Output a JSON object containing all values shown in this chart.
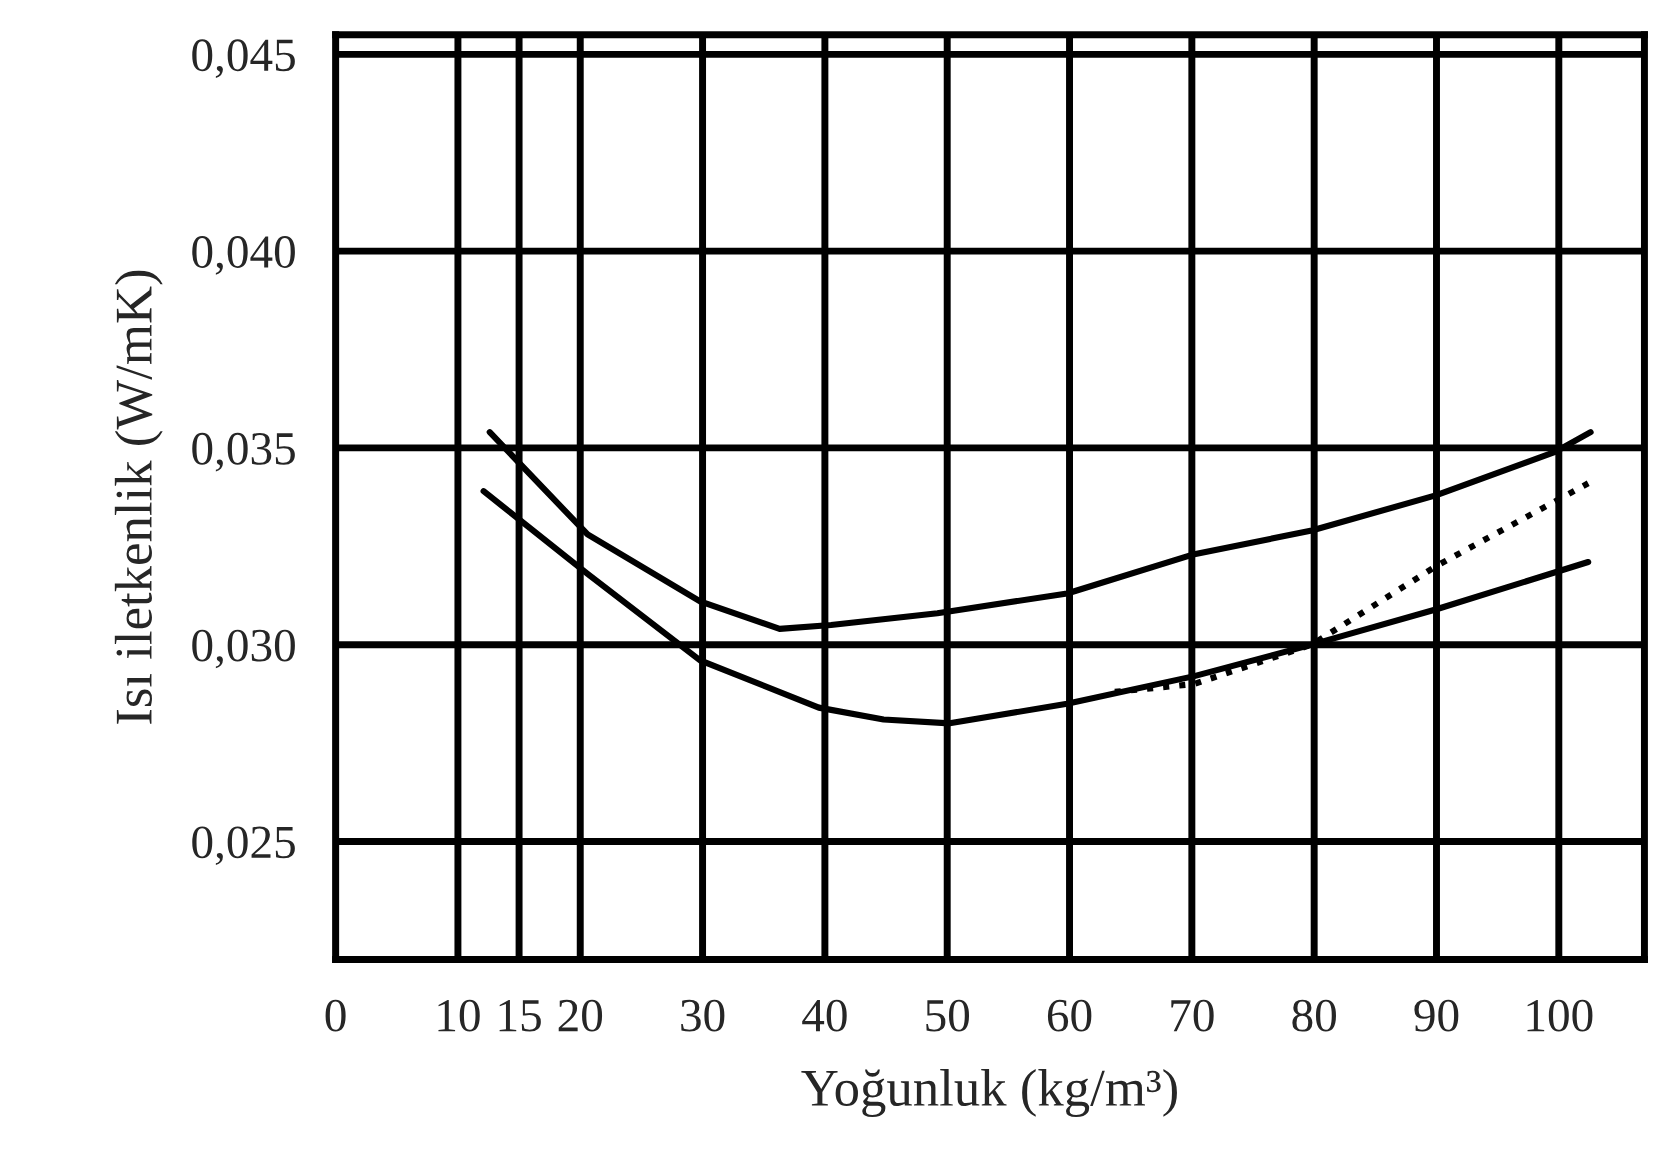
{
  "chart_data": {
    "type": "line",
    "xlabel": "Yoğunluk (kg/m³)",
    "ylabel": "Isı iletkenlik (W/mK)",
    "xlim": [
      0,
      107
    ],
    "xticks": [
      0,
      10,
      15,
      20,
      30,
      40,
      50,
      60,
      70,
      80,
      90,
      100
    ],
    "ylim": [
      0.022,
      0.0455
    ],
    "yticks": [
      {
        "value": 0.025,
        "label": "0,025"
      },
      {
        "value": 0.03,
        "label": "0,030"
      },
      {
        "value": 0.035,
        "label": "0,035"
      },
      {
        "value": 0.04,
        "label": "0,040"
      },
      {
        "value": 0.045,
        "label": "0,045"
      }
    ],
    "grid": true,
    "marker": "none",
    "series": [
      {
        "color": "#000000",
        "line_style": "solid",
        "x": [
          12.6,
          20.6,
          29.8,
          36.3,
          40.5,
          49.2,
          59.8,
          70.2,
          79.8,
          90,
          99.7,
          102.6
        ],
        "values": [
          0.0354,
          0.0328,
          0.0311,
          0.0304,
          0.0305,
          0.0308,
          0.0313,
          0.0323,
          0.0329,
          0.0338,
          0.0349,
          0.0354
        ]
      },
      {
        "color": "#000000",
        "line_style": "solid",
        "x": [
          12.1,
          20.6,
          29.8,
          39.5,
          44.8,
          50.2,
          59.8,
          70.2,
          79.8,
          90,
          102.4
        ],
        "values": [
          0.0339,
          0.0318,
          0.0296,
          0.0284,
          0.0281,
          0.028,
          0.0285,
          0.0292,
          0.03,
          0.0309,
          0.0321
        ]
      },
      {
        "color": "#000000",
        "line_style": "dotted",
        "x": [
          63.7,
          70.2,
          79.8,
          90,
          102.4
        ],
        "values": [
          0.0288,
          0.029,
          0.03,
          0.032,
          0.0341
        ]
      }
    ]
  }
}
